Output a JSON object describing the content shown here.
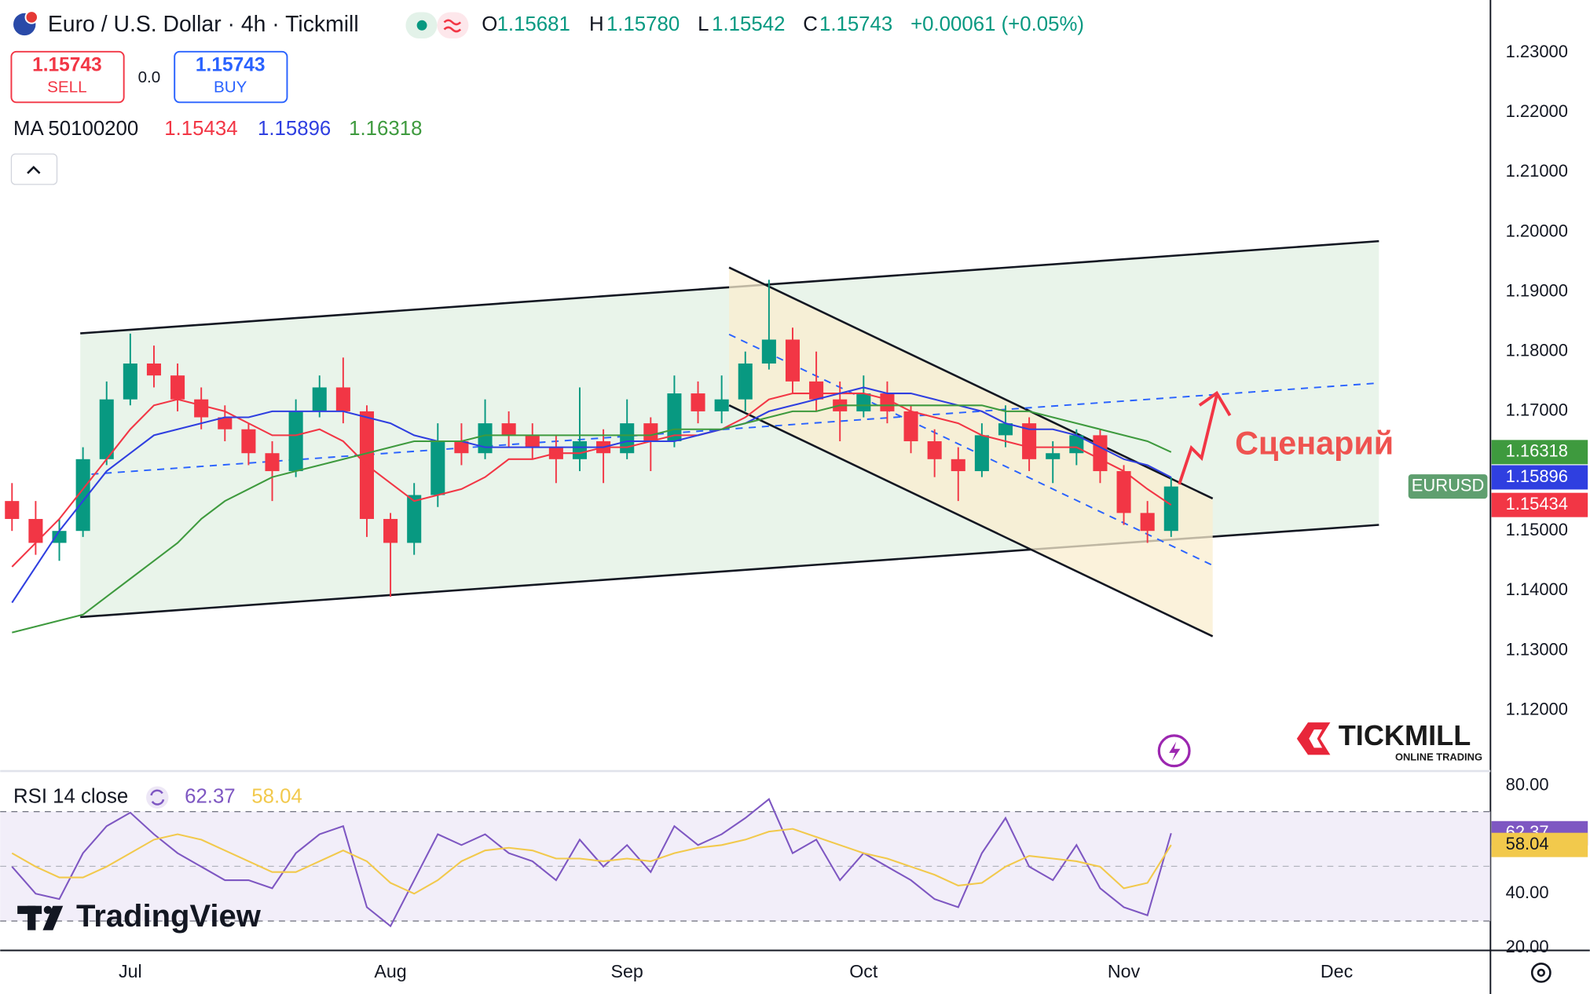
{
  "header": {
    "symbol": "Euro / U.S. Dollar · 4h · Tickmill",
    "ohlc": [
      {
        "key": "O",
        "value": "1.15681"
      },
      {
        "key": "H",
        "value": "1.15780"
      },
      {
        "key": "L",
        "value": "1.15542"
      },
      {
        "key": "C",
        "value": "1.15743"
      }
    ],
    "change": "+0.00061 (+0.05%)",
    "sell": {
      "price": "1.15743",
      "label": "SELL"
    },
    "spread": "0.0",
    "buy": {
      "price": "1.15743",
      "label": "BUY"
    }
  },
  "chart_data": [
    {
      "type": "candlestick",
      "indicator_title": "MA 50100200",
      "symbol_tag": "EURUSD",
      "annotation": "Сценарий",
      "up_color": "#089981",
      "down_color": "#f23645",
      "categories": [
        null,
        null,
        null,
        null,
        null,
        "Jul",
        null,
        null,
        null,
        null,
        null,
        null,
        null,
        null,
        null,
        null,
        "Aug",
        null,
        null,
        null,
        null,
        null,
        null,
        null,
        null,
        null,
        "Sep",
        null,
        null,
        null,
        null,
        null,
        null,
        null,
        null,
        null,
        "Oct",
        null,
        null,
        null,
        null,
        null,
        null,
        null,
        null,
        null,
        null,
        "Nov",
        null,
        null,
        null,
        null,
        null,
        null,
        null,
        null,
        "Dec",
        null,
        null,
        null,
        null,
        null,
        null
      ],
      "open": [
        1.155,
        1.152,
        1.148,
        1.15,
        1.162,
        1.172,
        1.178,
        1.176,
        1.172,
        1.169,
        1.167,
        1.163,
        1.16,
        1.17,
        1.174,
        1.17,
        1.152,
        1.148,
        1.156,
        1.165,
        1.163,
        1.168,
        1.166,
        1.164,
        1.162,
        1.165,
        1.163,
        1.168,
        1.165,
        1.173,
        1.17,
        1.172,
        1.178,
        1.182,
        1.175,
        1.172,
        1.17,
        1.173,
        1.17,
        1.165,
        1.162,
        1.16,
        1.166,
        1.168,
        1.162,
        1.163,
        1.166,
        1.16,
        1.153,
        1.15,
        null,
        null,
        null,
        null,
        null,
        null,
        null,
        null,
        null,
        null,
        null,
        null,
        null
      ],
      "high": [
        1.158,
        1.155,
        1.152,
        1.164,
        1.175,
        1.183,
        1.181,
        1.178,
        1.174,
        1.171,
        1.168,
        1.165,
        1.172,
        1.176,
        1.179,
        1.171,
        1.153,
        1.158,
        1.168,
        1.168,
        1.172,
        1.17,
        1.168,
        1.166,
        1.174,
        1.167,
        1.172,
        1.169,
        1.176,
        1.175,
        1.176,
        1.18,
        1.192,
        1.184,
        1.18,
        1.175,
        1.176,
        1.175,
        1.171,
        1.167,
        1.164,
        1.168,
        1.171,
        1.169,
        1.165,
        1.167,
        1.167,
        1.161,
        1.155,
        1.159,
        null,
        null,
        null,
        null,
        null,
        null,
        null,
        null,
        null,
        null,
        null,
        null,
        null
      ],
      "low": [
        1.15,
        1.146,
        1.145,
        1.149,
        1.161,
        1.171,
        1.174,
        1.17,
        1.167,
        1.165,
        1.161,
        1.155,
        1.159,
        1.169,
        1.168,
        1.149,
        1.139,
        1.146,
        1.154,
        1.161,
        1.162,
        1.164,
        1.162,
        1.158,
        1.16,
        1.158,
        1.162,
        1.16,
        1.164,
        1.168,
        1.168,
        1.17,
        1.177,
        1.173,
        1.17,
        1.165,
        1.169,
        1.168,
        1.163,
        1.159,
        1.155,
        1.159,
        1.164,
        1.16,
        1.158,
        1.161,
        1.158,
        1.151,
        1.148,
        1.149,
        null,
        null,
        null,
        null,
        null,
        null,
        null,
        null,
        null,
        null,
        null,
        null,
        null
      ],
      "close": [
        1.152,
        1.148,
        1.15,
        1.162,
        1.172,
        1.178,
        1.176,
        1.172,
        1.169,
        1.167,
        1.163,
        1.16,
        1.17,
        1.174,
        1.17,
        1.152,
        1.148,
        1.156,
        1.165,
        1.163,
        1.168,
        1.166,
        1.164,
        1.162,
        1.165,
        1.163,
        1.168,
        1.165,
        1.173,
        1.17,
        1.172,
        1.178,
        1.182,
        1.175,
        1.172,
        1.17,
        1.173,
        1.17,
        1.165,
        1.162,
        1.16,
        1.166,
        1.168,
        1.162,
        1.163,
        1.166,
        1.16,
        1.153,
        1.15,
        1.15743,
        null,
        null,
        null,
        null,
        null,
        null,
        null,
        null,
        null,
        null,
        null,
        null,
        null
      ],
      "series": [
        {
          "color": "#f23645",
          "values": [
            1.144,
            1.148,
            1.152,
            1.157,
            1.162,
            1.167,
            1.171,
            1.172,
            1.171,
            1.17,
            1.168,
            1.166,
            1.166,
            1.167,
            1.165,
            1.161,
            1.158,
            1.155,
            1.156,
            1.157,
            1.159,
            1.162,
            1.162,
            1.163,
            1.163,
            1.164,
            1.164,
            1.165,
            1.166,
            1.166,
            1.167,
            1.169,
            1.172,
            1.173,
            1.173,
            1.173,
            1.173,
            1.172,
            1.17,
            1.169,
            1.168,
            1.166,
            1.165,
            1.164,
            1.164,
            1.164,
            1.162,
            1.16,
            1.157,
            1.15434,
            null,
            null,
            null,
            null,
            null,
            null,
            null,
            null,
            null,
            null,
            null,
            null,
            null
          ]
        },
        {
          "color": "#2f3fe0",
          "values": [
            1.138,
            1.144,
            1.15,
            1.155,
            1.16,
            1.163,
            1.166,
            1.167,
            1.168,
            1.169,
            1.169,
            1.17,
            1.17,
            1.17,
            1.17,
            1.169,
            1.168,
            1.166,
            1.165,
            1.165,
            1.164,
            1.164,
            1.164,
            1.164,
            1.164,
            1.164,
            1.165,
            1.165,
            1.165,
            1.166,
            1.167,
            1.168,
            1.17,
            1.171,
            1.172,
            1.173,
            1.174,
            1.173,
            1.173,
            1.172,
            1.171,
            1.17,
            1.168,
            1.167,
            1.167,
            1.166,
            1.164,
            1.162,
            1.161,
            1.15896,
            null,
            null,
            null,
            null,
            null,
            null,
            null,
            null,
            null,
            null,
            null,
            null,
            null
          ]
        },
        {
          "color": "#3e9a3e",
          "values": [
            1.133,
            1.134,
            1.135,
            1.136,
            1.139,
            1.142,
            1.145,
            1.148,
            1.152,
            1.155,
            1.157,
            1.159,
            1.16,
            1.161,
            1.162,
            1.163,
            1.164,
            1.165,
            1.165,
            1.165,
            1.166,
            1.166,
            1.166,
            1.166,
            1.166,
            1.166,
            1.166,
            1.166,
            1.167,
            1.167,
            1.167,
            1.168,
            1.169,
            1.17,
            1.17,
            1.171,
            1.171,
            1.171,
            1.171,
            1.171,
            1.171,
            1.171,
            1.17,
            1.17,
            1.169,
            1.168,
            1.167,
            1.166,
            1.165,
            1.16318,
            null,
            null,
            null,
            null,
            null,
            null,
            null,
            null,
            null,
            null,
            null,
            null,
            null
          ]
        }
      ],
      "ylim": [
        1.11,
        1.2388
      ],
      "yticks": [
        {
          "value": 1.23,
          "label": "1.23000"
        },
        {
          "value": 1.22,
          "label": "1.22000"
        },
        {
          "value": 1.21,
          "label": "1.21000"
        },
        {
          "value": 1.2,
          "label": "1.20000"
        },
        {
          "value": 1.19,
          "label": "1.19000"
        },
        {
          "value": 1.18,
          "label": "1.18000"
        },
        {
          "value": 1.17,
          "label": "1.17000"
        },
        {
          "value": 1.15,
          "label": "1.15000"
        },
        {
          "value": 1.14,
          "label": "1.14000"
        },
        {
          "value": 1.13,
          "label": "1.13000"
        },
        {
          "value": 1.12,
          "label": "1.12000"
        }
      ]
    },
    {
      "type": "line",
      "title": "RSI 14 close",
      "series": [
        {
          "color": "#7e57c2",
          "values": [
            50,
            40,
            38,
            55,
            65,
            70,
            62,
            55,
            50,
            45,
            45,
            42,
            55,
            62,
            65,
            35,
            28,
            45,
            62,
            58,
            62,
            55,
            52,
            45,
            60,
            50,
            58,
            48,
            65,
            58,
            62,
            68,
            75,
            55,
            60,
            45,
            55,
            50,
            45,
            38,
            35,
            55,
            68,
            50,
            45,
            58,
            42,
            35,
            32,
            62.37,
            null,
            null,
            null,
            null,
            null,
            null,
            null,
            null,
            null,
            null,
            null,
            null,
            null
          ]
        },
        {
          "color": "#f2c94c",
          "values": [
            55,
            50,
            46,
            46,
            50,
            55,
            60,
            62,
            60,
            56,
            52,
            48,
            48,
            52,
            56,
            52,
            44,
            40,
            45,
            52,
            56,
            57,
            56,
            53,
            53,
            52,
            53,
            52,
            55,
            57,
            58,
            60,
            63,
            64,
            61,
            58,
            55,
            53,
            50,
            47,
            43,
            44,
            50,
            54,
            53,
            52,
            50,
            42,
            44,
            58.04,
            null,
            null,
            null,
            null,
            null,
            null,
            null,
            null,
            null,
            null,
            null,
            null,
            null
          ]
        }
      ],
      "ylim": [
        19,
        85
      ],
      "yticks": [
        {
          "value": 80,
          "label": "80.00"
        },
        {
          "value": 40,
          "label": "40.00"
        },
        {
          "value": 20,
          "label": "20.00"
        }
      ]
    }
  ],
  "branding": {
    "broker": "TICKMILL",
    "broker_tagline": "ONLINE TRADING",
    "platform": "TradingView"
  }
}
